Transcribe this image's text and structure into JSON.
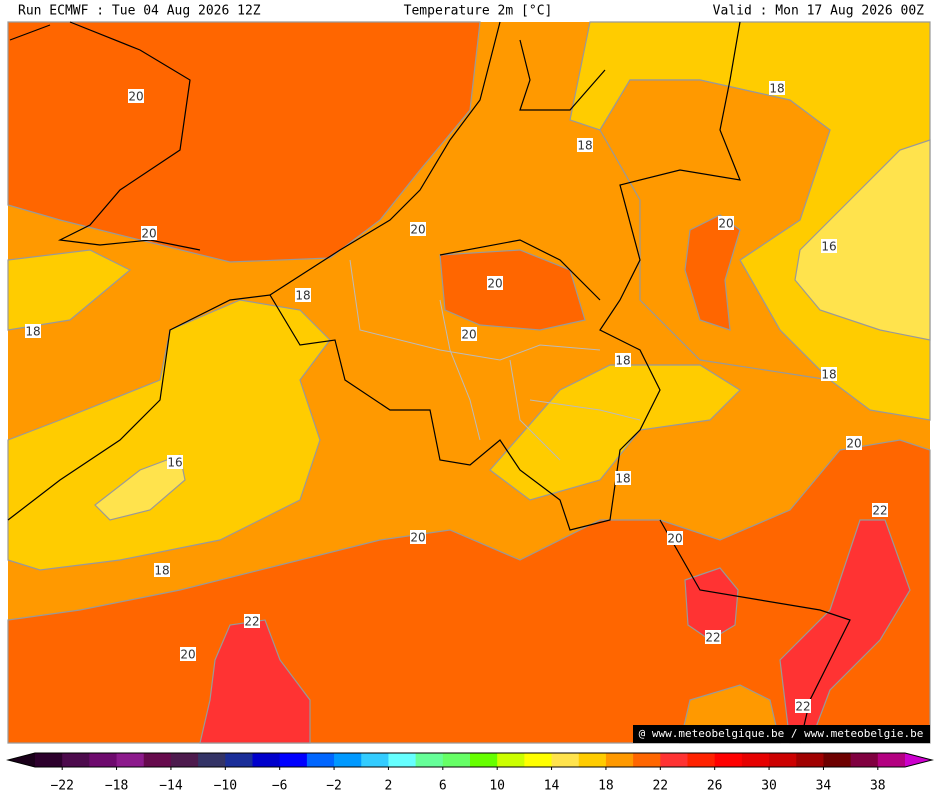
{
  "header": {
    "left": "Run ECMWF : Tue 04 Aug 2026 12Z",
    "center": "Temperature 2m [°C]",
    "right": "Valid : Mon 17 Aug 2026 00Z"
  },
  "contour_labels": [
    "20",
    "18",
    "18",
    "20",
    "20",
    "20",
    "16",
    "20",
    "18",
    "18",
    "20",
    "18",
    "18",
    "16",
    "20",
    "18",
    "22",
    "20",
    "20",
    "18",
    "22",
    "22",
    "20",
    "22"
  ],
  "watermark": "@ www.meteobelgique.be / www.meteobelgie.be",
  "colorbar": {
    "colors": [
      "#2d002d",
      "#4d0a4d",
      "#6e0a6e",
      "#8c1a8c",
      "#660a4d",
      "#4d1a4d",
      "#333366",
      "#1a2e99",
      "#0000cc",
      "#0000ff",
      "#0066ff",
      "#0099ff",
      "#33ccff",
      "#66ffff",
      "#66ff99",
      "#66ff66",
      "#66ff00",
      "#ccff00",
      "#ffff00",
      "#ffe34d",
      "#ffcc00",
      "#ff9900",
      "#ff6600",
      "#ff3333",
      "#ff2200",
      "#ff0000",
      "#e60000",
      "#cc0000",
      "#a00000",
      "#6e0000",
      "#800040",
      "#b30080"
    ],
    "low_color": "#1a001a",
    "high_color": "#cc00cc",
    "labels": [
      "−22",
      "−18",
      "−14",
      "−10",
      "−6",
      "−2",
      "2",
      "6",
      "10",
      "14",
      "18",
      "22",
      "26",
      "30",
      "34",
      "38"
    ]
  }
}
